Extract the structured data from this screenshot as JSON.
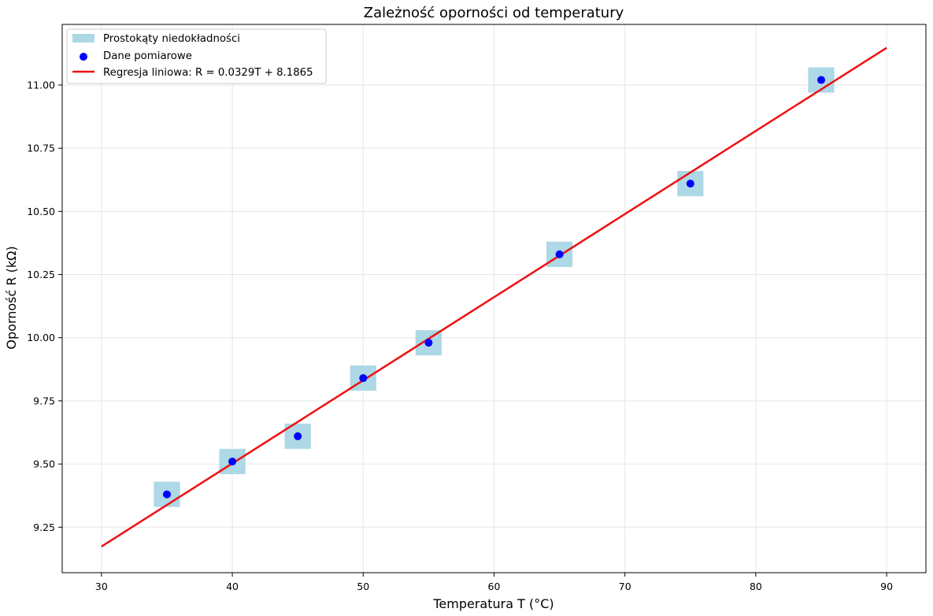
{
  "chart_data": {
    "type": "scatter",
    "title": "Zależność oporności od temperatury",
    "xlabel": "Temperatura T (°C)",
    "ylabel": "Oporność R (kΩ)",
    "xlim": [
      27,
      93
    ],
    "ylim": [
      9.07,
      11.24
    ],
    "xticks": [
      30,
      40,
      50,
      60,
      70,
      80,
      90
    ],
    "yticks": [
      9.25,
      9.5,
      9.75,
      10.0,
      10.25,
      10.5,
      10.75,
      11.0
    ],
    "xtick_labels": [
      "30",
      "40",
      "50",
      "60",
      "70",
      "80",
      "90"
    ],
    "ytick_labels": [
      "9.25",
      "9.50",
      "9.75",
      "10.00",
      "10.25",
      "10.50",
      "10.75",
      "11.00"
    ],
    "grid": true,
    "legend_position": "top-left",
    "points": {
      "name": "Dane pomiarowe",
      "color": "#0000ff",
      "x": [
        35,
        40,
        45,
        50,
        55,
        65,
        75,
        85
      ],
      "y": [
        9.38,
        9.51,
        9.61,
        9.84,
        9.98,
        10.33,
        10.61,
        11.02
      ]
    },
    "uncertainty": {
      "name": "Prostokąty niedokładności",
      "color": "#add8e6",
      "dx": 1.0,
      "dy": 0.05
    },
    "regression": {
      "name": "Regresja liniowa: R = 0.0329T + 8.1865",
      "color": "#ee1111",
      "slope": 0.0329,
      "intercept": 8.1865,
      "x_range": [
        30,
        90
      ]
    },
    "grid_color": "#e6e6e6"
  }
}
